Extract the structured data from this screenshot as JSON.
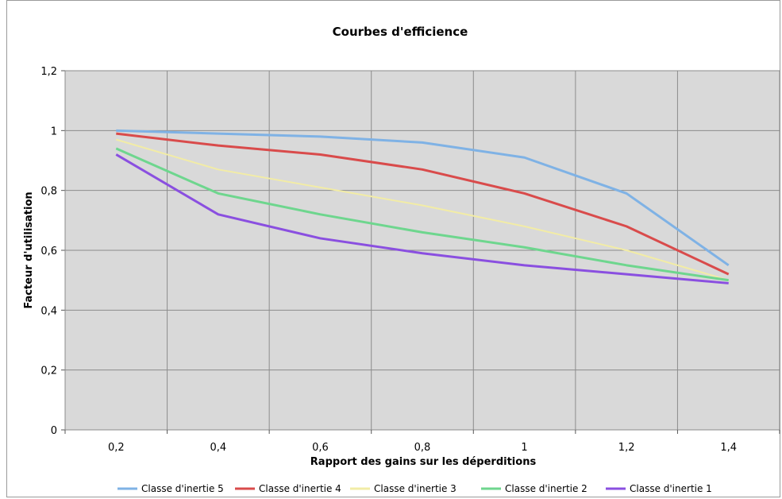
{
  "chart_data": {
    "type": "line",
    "title": "Courbes d'efficience",
    "xlabel": "Rapport des gains sur les déperditions",
    "ylabel": "Facteur d'utilisation",
    "x": [
      0.2,
      0.4,
      0.6,
      0.8,
      1.0,
      1.2,
      1.4
    ],
    "x_tick_labels": [
      "0,2",
      "0,4",
      "0,6",
      "0,8",
      "1",
      "1,2",
      "1,4"
    ],
    "y_ticks": [
      0,
      0.2,
      0.4,
      0.6,
      0.8,
      1.0,
      1.2
    ],
    "y_tick_labels": [
      "0",
      "0,2",
      "0,4",
      "0,6",
      "0,8",
      "1",
      "1,2"
    ],
    "ylim": [
      0,
      1.2
    ],
    "grid": true,
    "legend_position": "bottom",
    "plot_background": "#d9d9d9",
    "series": [
      {
        "name": "Classe d'inertie 5",
        "color": "#7fb2e5",
        "values": [
          1.0,
          0.99,
          0.98,
          0.96,
          0.91,
          0.79,
          0.55
        ]
      },
      {
        "name": "Classe d'inertie 4",
        "color": "#d94b4b",
        "values": [
          0.99,
          0.95,
          0.92,
          0.87,
          0.79,
          0.68,
          0.52
        ]
      },
      {
        "name": "Classe d'inertie 3",
        "color": "#f2eca6",
        "values": [
          0.97,
          0.87,
          0.81,
          0.75,
          0.68,
          0.6,
          0.5
        ]
      },
      {
        "name": "Classe d'inertie 2",
        "color": "#6ed68e",
        "values": [
          0.94,
          0.79,
          0.72,
          0.66,
          0.61,
          0.55,
          0.5
        ]
      },
      {
        "name": "Classe d'inertie 1",
        "color": "#8a4fe0",
        "values": [
          0.92,
          0.72,
          0.64,
          0.59,
          0.55,
          0.52,
          0.49
        ]
      }
    ]
  }
}
